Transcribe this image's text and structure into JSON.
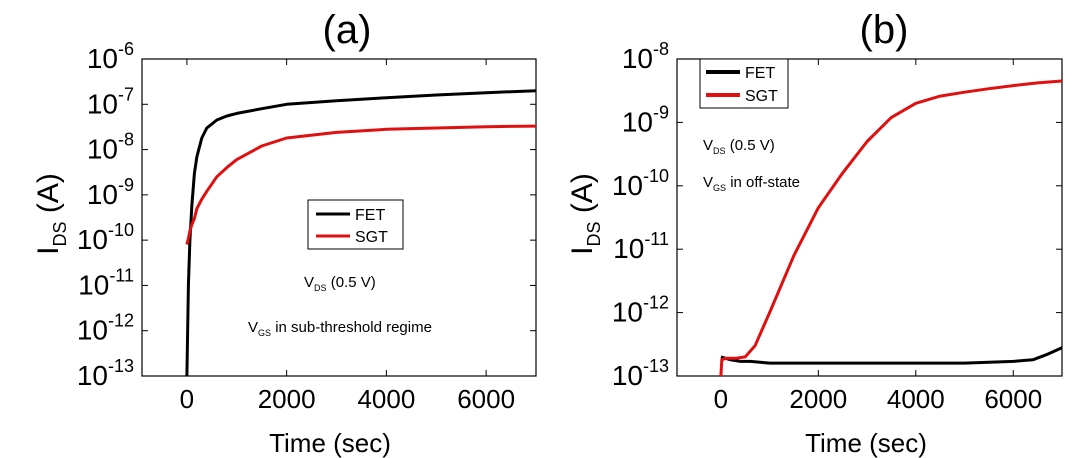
{
  "chart_data": [
    {
      "type": "line",
      "title": "(a)",
      "xlabel": "Time (sec)",
      "ylabel": "I_DS (A)",
      "ylabel_main": "I",
      "ylabel_sub": "DS",
      "ylabel_unit": "(A)",
      "y_scale": "log",
      "xlim": [
        -900,
        7000
      ],
      "ylim": [
        1e-13,
        1e-06
      ],
      "x_ticks": [
        0,
        2000,
        4000,
        6000
      ],
      "x_tick_labels": [
        "0",
        "2000",
        "4000",
        "6000"
      ],
      "y_tick_exponents": [
        -6,
        -7,
        -8,
        -9,
        -10,
        -11,
        -12,
        -13
      ],
      "y_tick_base": "10",
      "legend": {
        "entries": [
          "FET",
          "SGT"
        ],
        "placement": "center"
      },
      "annotations": [
        {
          "main": "V",
          "sub": "DS",
          "rest": " (0.5 V)"
        },
        {
          "main": "V",
          "sub": "GS",
          "rest": " in sub-threshold regime"
        }
      ],
      "series": [
        {
          "name": "FET",
          "color": "#000000",
          "points": [
            [
              0,
              1e-13
            ],
            [
              30,
              1e-11
            ],
            [
              60,
              1e-10
            ],
            [
              100,
              6e-10
            ],
            [
              150,
              3e-09
            ],
            [
              200,
              7e-09
            ],
            [
              300,
              1.8e-08
            ],
            [
              400,
              3e-08
            ],
            [
              600,
              4.5e-08
            ],
            [
              800,
              5.5e-08
            ],
            [
              1000,
              6.3e-08
            ],
            [
              1500,
              8e-08
            ],
            [
              2000,
              1e-07
            ],
            [
              3000,
              1.2e-07
            ],
            [
              4000,
              1.4e-07
            ],
            [
              5000,
              1.6e-07
            ],
            [
              6000,
              1.8e-07
            ],
            [
              7000,
              2e-07
            ]
          ]
        },
        {
          "name": "SGT",
          "color": "#e01010",
          "points": [
            [
              0,
              8e-11
            ],
            [
              30,
              1.1e-10
            ],
            [
              60,
              1.6e-10
            ],
            [
              100,
              2.2e-10
            ],
            [
              150,
              3e-10
            ],
            [
              200,
              5e-10
            ],
            [
              300,
              8e-10
            ],
            [
              400,
              1.2e-09
            ],
            [
              600,
              2.5e-09
            ],
            [
              800,
              4e-09
            ],
            [
              1000,
              6e-09
            ],
            [
              1500,
              1.2e-08
            ],
            [
              2000,
              1.8e-08
            ],
            [
              3000,
              2.4e-08
            ],
            [
              4000,
              2.8e-08
            ],
            [
              5000,
              3e-08
            ],
            [
              6000,
              3.2e-08
            ],
            [
              7000,
              3.3e-08
            ]
          ]
        }
      ]
    },
    {
      "type": "line",
      "title": "(b)",
      "xlabel": "Time (sec)",
      "ylabel": "I_DS (A)",
      "ylabel_main": "I",
      "ylabel_sub": "DS",
      "ylabel_unit": "(A)",
      "y_scale": "log",
      "xlim": [
        -900,
        7000
      ],
      "ylim": [
        1e-13,
        1e-08
      ],
      "x_ticks": [
        0,
        2000,
        4000,
        6000
      ],
      "x_tick_labels": [
        "0",
        "2000",
        "4000",
        "6000"
      ],
      "y_tick_exponents": [
        -8,
        -9,
        -10,
        -11,
        -12,
        -13
      ],
      "y_tick_base": "10",
      "legend": {
        "entries": [
          "FET",
          "SGT"
        ],
        "placement": "top-left"
      },
      "annotations": [
        {
          "main": "V",
          "sub": "DS",
          "rest": " (0.5 V)"
        },
        {
          "main": "V",
          "sub": "GS",
          "rest": " in off-state"
        }
      ],
      "series": [
        {
          "name": "FET",
          "color": "#000000",
          "points": [
            [
              0,
              2e-13
            ],
            [
              200,
              1.8e-13
            ],
            [
              400,
              1.7e-13
            ],
            [
              600,
              1.7e-13
            ],
            [
              1000,
              1.6e-13
            ],
            [
              2000,
              1.6e-13
            ],
            [
              3000,
              1.6e-13
            ],
            [
              4000,
              1.6e-13
            ],
            [
              5000,
              1.6e-13
            ],
            [
              6000,
              1.7e-13
            ],
            [
              6400,
              1.8e-13
            ],
            [
              6700,
              2.2e-13
            ],
            [
              7000,
              2.8e-13
            ]
          ]
        },
        {
          "name": "SGT",
          "color": "#e01010",
          "points": [
            [
              0,
              1e-13
            ],
            [
              20,
              1.8e-13
            ],
            [
              100,
              1.9e-13
            ],
            [
              300,
              1.9e-13
            ],
            [
              500,
              2e-13
            ],
            [
              700,
              3e-13
            ],
            [
              1000,
              1e-12
            ],
            [
              1500,
              8e-12
            ],
            [
              2000,
              4.5e-11
            ],
            [
              2500,
              1.6e-10
            ],
            [
              3000,
              5e-10
            ],
            [
              3500,
              1.2e-09
            ],
            [
              4000,
              2e-09
            ],
            [
              4500,
              2.6e-09
            ],
            [
              5000,
              3e-09
            ],
            [
              5500,
              3.4e-09
            ],
            [
              6000,
              3.8e-09
            ],
            [
              6500,
              4.2e-09
            ],
            [
              7000,
              4.5e-09
            ]
          ]
        }
      ]
    }
  ]
}
